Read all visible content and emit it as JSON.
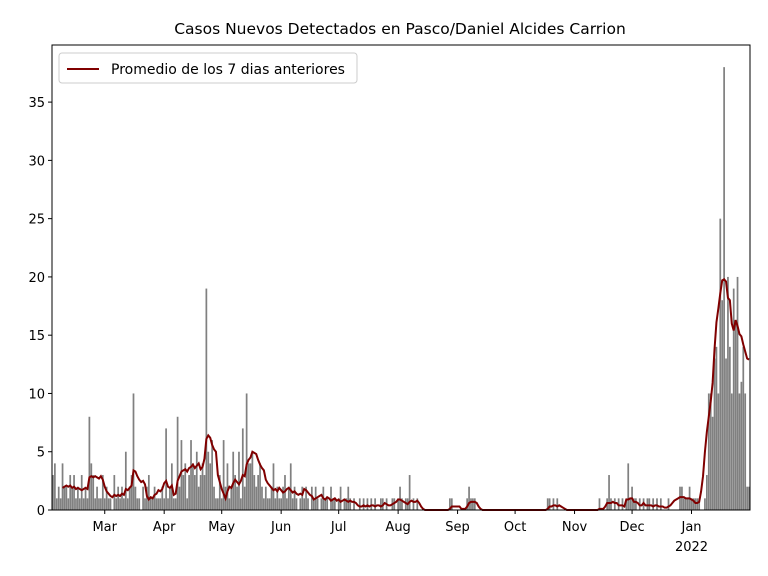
{
  "chart_data": {
    "type": "bar_line",
    "title": "Casos Nuevos Detectados en Pasco/Daniel Alcides Carrion",
    "ylim": [
      0,
      39.9
    ],
    "yticks": [
      0,
      5,
      10,
      15,
      20,
      25,
      30,
      35
    ],
    "xlim": [
      -0.5,
      363.5
    ],
    "xticks": [
      {
        "value": 27,
        "label": "Mar"
      },
      {
        "value": 58,
        "label": "Apr"
      },
      {
        "value": 88,
        "label": "May"
      },
      {
        "value": 119,
        "label": "Jun"
      },
      {
        "value": 149,
        "label": "Jul"
      },
      {
        "value": 180,
        "label": "Aug"
      },
      {
        "value": 211,
        "label": "Sep"
      },
      {
        "value": 241,
        "label": "Oct"
      },
      {
        "value": 272,
        "label": "Nov"
      },
      {
        "value": 302,
        "label": "Dec"
      },
      {
        "value": 333,
        "label": "Jan\n2022"
      }
    ],
    "legend": "upper left",
    "series": [
      {
        "type": "bar",
        "color": "#808080",
        "values": [
          3,
          4,
          1,
          2,
          1,
          4,
          2,
          2,
          1,
          3,
          2,
          3,
          1,
          2,
          1,
          3,
          1,
          2,
          1,
          8,
          4,
          3,
          1,
          2,
          1,
          1,
          3,
          1,
          2,
          1,
          1,
          0,
          3,
          1,
          2,
          1,
          2,
          1,
          5,
          1,
          2,
          3,
          10,
          2,
          1,
          1,
          0,
          2,
          1,
          2,
          3,
          1,
          1,
          2,
          1,
          1,
          1,
          2,
          1,
          7,
          1,
          2,
          4,
          1,
          1,
          8,
          2,
          6,
          3,
          4,
          1,
          3,
          6,
          4,
          3,
          5,
          2,
          3,
          4,
          3,
          19,
          5,
          4,
          6,
          2,
          1,
          1,
          3,
          1,
          6,
          2,
          4,
          1,
          2,
          5,
          3,
          2,
          5,
          1,
          7,
          2,
          10,
          4,
          4,
          5,
          3,
          2,
          3,
          4,
          2,
          1,
          2,
          1,
          1,
          2,
          4,
          1,
          2,
          1,
          1,
          2,
          3,
          1,
          2,
          4,
          1,
          2,
          1,
          0,
          1,
          2,
          1,
          2,
          1,
          0,
          2,
          1,
          2,
          1,
          0,
          1,
          2,
          1,
          1,
          0,
          2,
          1,
          1,
          0,
          1,
          2,
          0,
          1,
          1,
          2,
          1,
          0,
          1,
          0,
          0,
          1,
          0,
          1,
          0,
          1,
          0,
          1,
          0,
          1,
          0,
          0,
          1,
          1,
          0,
          1,
          0,
          0,
          1,
          1,
          0,
          1,
          2,
          1,
          0,
          1,
          1,
          3,
          0,
          1,
          0,
          1,
          0,
          0,
          0,
          0,
          0,
          0,
          0,
          0,
          0,
          0,
          0,
          0,
          0,
          0,
          0,
          0,
          1,
          1,
          0,
          0,
          0,
          0,
          0,
          0,
          0,
          1,
          2,
          1,
          1,
          1,
          0,
          0,
          0,
          0,
          0,
          0,
          0,
          0,
          0,
          0,
          0,
          0,
          0,
          0,
          0,
          0,
          0,
          0,
          0,
          0,
          0,
          0,
          0,
          0,
          0,
          0,
          0,
          0,
          0,
          0,
          0,
          0,
          0,
          0,
          0,
          0,
          0,
          1,
          1,
          0,
          1,
          0,
          1,
          0,
          0,
          0,
          0,
          0,
          0,
          0,
          0,
          0,
          0,
          0,
          0,
          0,
          0,
          0,
          0,
          0,
          0,
          0,
          0,
          0,
          1,
          0,
          0,
          0,
          1,
          3,
          1,
          0,
          1,
          0,
          1,
          0,
          1,
          0,
          1,
          4,
          1,
          2,
          1,
          1,
          0,
          1,
          0,
          1,
          0,
          1,
          1,
          0,
          1,
          0,
          1,
          0,
          1,
          0,
          0,
          0,
          1,
          0,
          0,
          0,
          0,
          0,
          2,
          2,
          1,
          1,
          1,
          2,
          1,
          1,
          1,
          1,
          1,
          0,
          0,
          1,
          3,
          10,
          10,
          8,
          13,
          14,
          10,
          25,
          18,
          38,
          13,
          20,
          14,
          10,
          19,
          16,
          20,
          10,
          11,
          14,
          10,
          2,
          2
        ]
      },
      {
        "type": "line",
        "name": "Promedio de los 7 dias anteriores",
        "color": "#800000",
        "values": [
          null,
          null,
          null,
          null,
          null,
          1.9,
          2.0,
          2.1,
          2.0,
          2.1,
          1.9,
          2.0,
          1.8,
          1.9,
          1.8,
          1.7,
          1.8,
          1.9,
          1.8,
          2.8,
          2.9,
          2.8,
          2.9,
          2.8,
          2.7,
          2.9,
          2.6,
          2.0,
          1.6,
          1.4,
          1.2,
          1.1,
          1.3,
          1.2,
          1.3,
          1.2,
          1.4,
          1.3,
          1.8,
          1.7,
          1.9,
          2.1,
          3.4,
          3.3,
          2.9,
          2.6,
          2.4,
          2.5,
          2.2,
          1.2,
          0.9,
          1.1,
          1.0,
          1.3,
          1.4,
          1.7,
          1.6,
          1.8,
          2.3,
          2.5,
          2.0,
          1.9,
          2.1,
          1.3,
          1.4,
          2.5,
          2.9,
          3.3,
          3.4,
          3.5,
          3.3,
          3.6,
          3.7,
          3.9,
          3.6,
          3.8,
          4.0,
          3.5,
          3.7,
          4.4,
          6.1,
          6.4,
          6.2,
          5.6,
          5.2,
          5.0,
          3.0,
          2.4,
          1.8,
          1.4,
          1.0,
          1.6,
          2.0,
          1.9,
          2.3,
          2.6,
          2.4,
          2.2,
          2.5,
          3.0,
          2.9,
          3.9,
          4.3,
          4.5,
          5.0,
          4.9,
          4.8,
          4.3,
          3.9,
          3.6,
          3.4,
          2.6,
          2.3,
          2.1,
          1.9,
          1.7,
          1.8,
          1.6,
          1.9,
          1.7,
          1.5,
          1.6,
          1.8,
          1.9,
          1.7,
          1.5,
          1.6,
          1.4,
          1.3,
          1.4,
          1.3,
          1.8,
          1.7,
          1.5,
          1.3,
          1.2,
          0.9,
          1.0,
          1.1,
          1.2,
          1.3,
          1.0,
          0.9,
          1.1,
          1.0,
          0.8,
          0.9,
          1.0,
          0.8,
          0.9,
          0.7,
          0.8,
          0.9,
          0.8,
          0.7,
          0.8,
          0.7,
          0.7,
          0.6,
          0.4,
          0.3,
          0.3,
          0.4,
          0.3,
          0.4,
          0.3,
          0.4,
          0.4,
          0.3,
          0.4,
          0.4,
          0.3,
          0.4,
          0.6,
          0.5,
          0.4,
          0.4,
          0.5,
          0.6,
          0.7,
          0.9,
          0.9,
          0.8,
          0.7,
          0.6,
          0.5,
          0.7,
          0.8,
          0.7,
          0.7,
          0.8,
          0.6,
          0.3,
          0.1,
          0,
          0,
          0,
          0,
          0,
          0,
          0,
          0,
          0,
          0,
          0,
          0,
          0,
          0.1,
          0.3,
          0.3,
          0.3,
          0.3,
          0.3,
          0.1,
          0.1,
          0.1,
          0.3,
          0.6,
          0.7,
          0.7,
          0.7,
          0.6,
          0.3,
          0.1,
          0,
          0,
          0,
          0,
          0,
          0,
          0,
          0,
          0,
          0,
          0,
          0,
          0,
          0,
          0,
          0,
          0,
          0,
          0,
          0,
          0,
          0,
          0,
          0,
          0,
          0,
          0,
          0,
          0,
          0,
          0,
          0,
          0,
          0,
          0.1,
          0.3,
          0.3,
          0.4,
          0.4,
          0.3,
          0.4,
          0.3,
          0.2,
          0.1,
          0,
          0,
          0,
          0,
          0,
          0,
          0,
          0,
          0,
          0,
          0,
          0,
          0,
          0,
          0,
          0,
          0,
          0.1,
          0.1,
          0.1,
          0.3,
          0.6,
          0.6,
          0.6,
          0.7,
          0.6,
          0.6,
          0.4,
          0.4,
          0.4,
          0.3,
          0.9,
          0.9,
          1.0,
          1.0,
          0.7,
          0.7,
          0.6,
          0.4,
          0.4,
          0.6,
          0.4,
          0.4,
          0.4,
          0.4,
          0.3,
          0.4,
          0.4,
          0.3,
          0.3,
          0.3,
          0.2,
          0.2,
          0.3,
          0.4,
          0.6,
          0.8,
          0.9,
          1.0,
          1.1,
          1.1,
          1.1,
          1.0,
          1.0,
          1.0,
          0.9,
          0.8,
          0.6,
          0.6,
          0.7,
          1.6,
          2.9,
          5.0,
          6.7,
          8.0,
          9.3,
          10.9,
          13.8,
          16.1,
          17.3,
          18.6,
          19.7,
          19.8,
          19.6,
          18.2,
          18.0,
          16.0,
          15.4,
          16.3,
          15.8,
          15.1,
          14.9,
          14.2,
          13.6,
          13.0,
          12.9
        ]
      }
    ]
  }
}
